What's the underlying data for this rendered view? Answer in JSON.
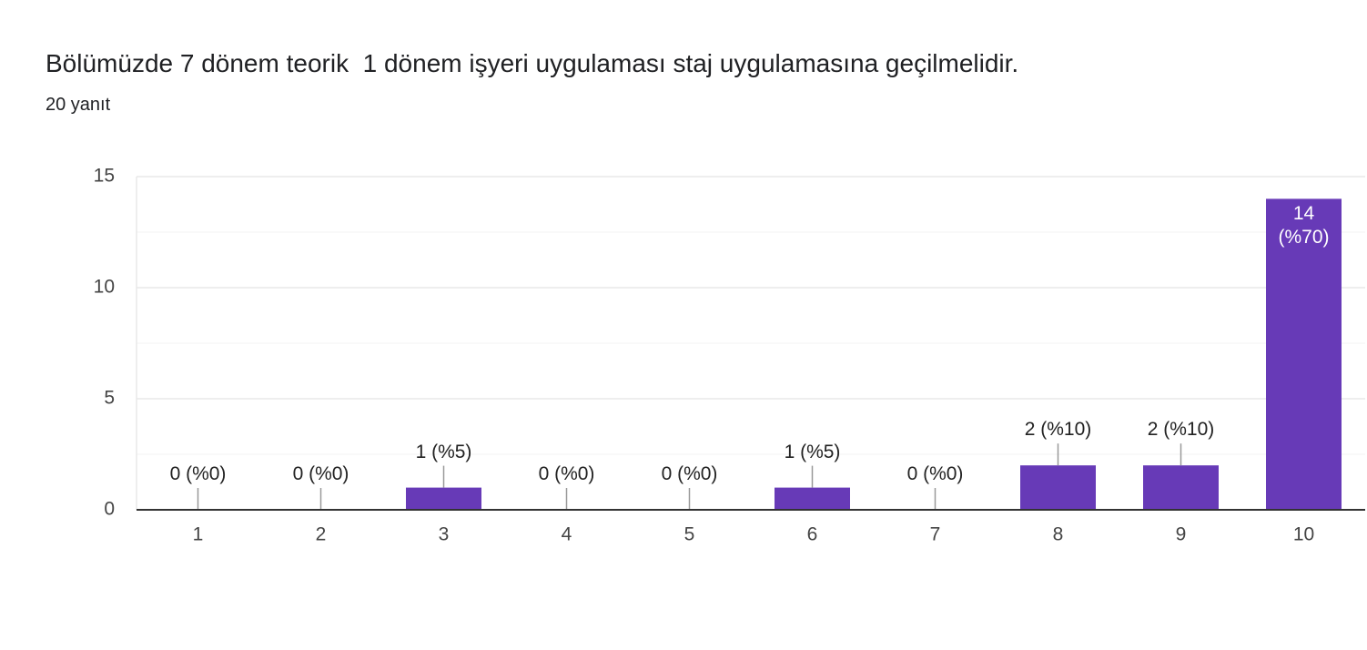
{
  "chart_data": {
    "type": "bar",
    "title": "Bölümüzde 7 dönem teorik  1 dönem işyeri uygulaması staj uygulamasına geçilmelidir.",
    "subtitle": "20 yanıt",
    "categories": [
      "1",
      "2",
      "3",
      "4",
      "5",
      "6",
      "7",
      "8",
      "9",
      "10"
    ],
    "values": [
      0,
      0,
      1,
      0,
      0,
      1,
      0,
      2,
      2,
      14
    ],
    "value_labels": [
      "0 (%0)",
      "0 (%0)",
      "1 (%5)",
      "0 (%0)",
      "0 (%0)",
      "1 (%5)",
      "0 (%0)",
      "2 (%10)",
      "2 (%10)",
      "14 (%70)"
    ],
    "color": "#673ab7",
    "ylim": [
      0,
      15
    ],
    "yticks": [
      0,
      5,
      10,
      15
    ],
    "minor_yticks": [
      2.5,
      7.5,
      12.5
    ],
    "grid": true
  }
}
